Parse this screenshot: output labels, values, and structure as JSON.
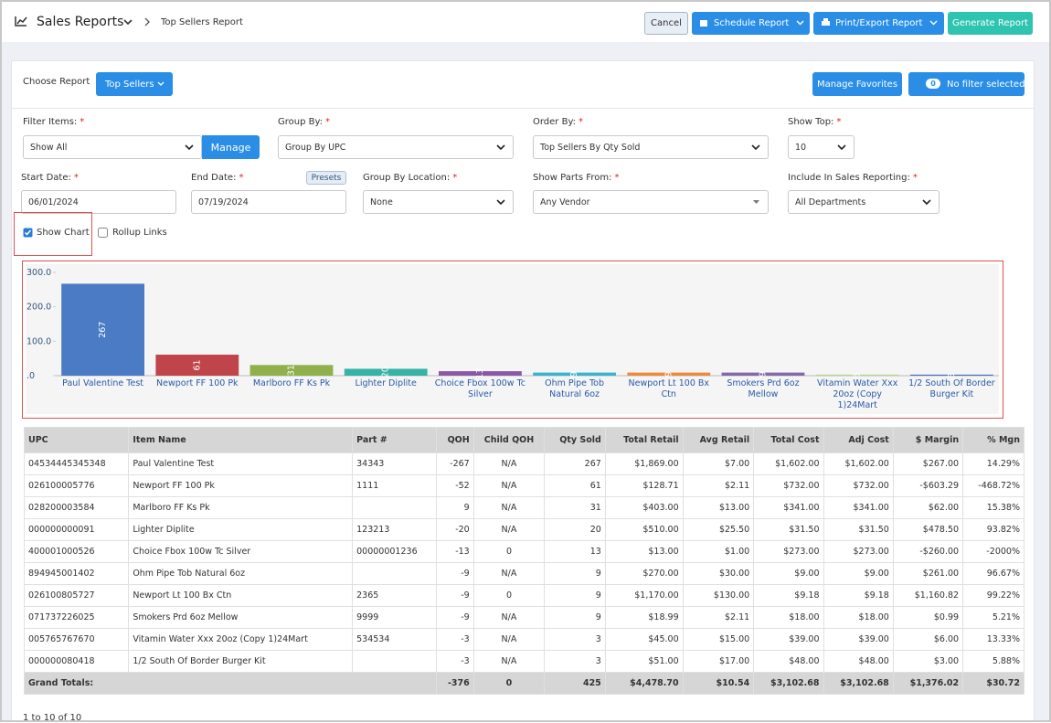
{
  "header": {
    "title": "Sales Reports",
    "breadcrumb": "Top Sellers Report",
    "cancel": "Cancel",
    "schedule": "Schedule Report",
    "print": "Print/Export Report",
    "generate": "Generate Report"
  },
  "toolbar": {
    "choose_label": "Choose Report",
    "report": "Top Sellers",
    "manage_favorites": "Manage Favorites",
    "filter_count": 0,
    "filter_status": "No filter selected"
  },
  "required_mark": "*",
  "filters": {
    "filter_items": {
      "label": "Filter Items:",
      "value": "Show All",
      "button": "Manage"
    },
    "group_by": {
      "label": "Group By:",
      "value": "Group By UPC"
    },
    "order_by": {
      "label": "Order By:",
      "value": "Top Sellers By Qty Sold"
    },
    "show_top": {
      "label": "Show Top:",
      "value": 10
    },
    "start_date": {
      "label": "Start Date:",
      "value": "06/01/2024"
    },
    "end_date": {
      "label": "End Date:",
      "value": "07/19/2024",
      "button": "Presets"
    },
    "group_by_location": {
      "label": "Group By Location:",
      "value": "None"
    },
    "show_parts_from": {
      "label": "Show Parts From:",
      "value": "Any Vendor"
    },
    "include_in_sales": {
      "label": "Include In Sales Reporting:",
      "value": "All Departments"
    }
  },
  "checkboxes": {
    "show_chart": "Show Chart",
    "rollup_links": "Rollup Links"
  },
  "chart_data": {
    "type": "bar",
    "categories": [
      "Paul Valentine Test",
      "Newport FF 100 Pk",
      "Marlboro FF Ks Pk",
      "Lighter Diplite",
      "Choice Fbox 100w Tc Silver",
      "Ohm Pipe Tob Natural 6oz",
      "Newport Lt 100 Bx Ctn",
      "Smokers Prd 6oz Mellow",
      "Vitamin Water Xxx 20oz (Copy 1)24Mart",
      "1/2 South Of Border Burger Kit"
    ],
    "values": [
      267,
      61,
      31,
      20,
      13,
      9,
      9,
      9,
      3,
      3
    ],
    "colors": [
      "#4a7bc4",
      "#c0454a",
      "#8fb04a",
      "#35b3a6",
      "#8a58a6",
      "#3ab3cf",
      "#f08a3a",
      "#8468a8",
      "#b8d48a",
      "#4a70c0"
    ],
    "ylim": [
      0,
      300
    ],
    "yticks": [
      {
        "value": 0,
        "label": ".0"
      },
      {
        "value": 100,
        "label": "100.0"
      },
      {
        "value": 200,
        "label": "200.0"
      },
      {
        "value": 300,
        "label": "300.0"
      }
    ]
  },
  "table": {
    "columns": [
      "UPC",
      "Item Name",
      "Part #",
      "QOH",
      "Child QOH",
      "Qty Sold",
      "Total Retail",
      "Avg Retail",
      "Total Cost",
      "Adj Cost",
      "$ Margin",
      "% Mgn"
    ],
    "rows": [
      [
        "04534445345348",
        "Paul Valentine Test",
        "34343",
        -267,
        "N/A",
        267,
        "$1,869.00",
        "$7.00",
        "$1,602.00",
        "$1,602.00",
        "$267.00",
        "14.29%"
      ],
      [
        "026100005776",
        "Newport FF 100 Pk",
        "1111",
        -52,
        "N/A",
        61,
        "$128.71",
        "$2.11",
        "$732.00",
        "$732.00",
        "-$603.29",
        "-468.72%"
      ],
      [
        "028200003584",
        "Marlboro FF Ks Pk",
        null,
        9,
        "N/A",
        31,
        "$403.00",
        "$13.00",
        "$341.00",
        "$341.00",
        "$62.00",
        "15.38%"
      ],
      [
        "000000000091",
        "Lighter Diplite",
        "123213",
        -20,
        "N/A",
        20,
        "$510.00",
        "$25.50",
        "$31.50",
        "$31.50",
        "$478.50",
        "93.82%"
      ],
      [
        "400001000526",
        "Choice Fbox 100w Tc Silver",
        "00000001236",
        -13,
        0,
        13,
        "$13.00",
        "$1.00",
        "$273.00",
        "$273.00",
        "-$260.00",
        "-2000%"
      ],
      [
        "894945001402",
        "Ohm Pipe Tob Natural 6oz",
        null,
        -9,
        "N/A",
        9,
        "$270.00",
        "$30.00",
        "$9.00",
        "$9.00",
        "$261.00",
        "96.67%"
      ],
      [
        "026100805727",
        "Newport Lt 100 Bx Ctn",
        "2365",
        -9,
        0,
        9,
        "$1,170.00",
        "$130.00",
        "$9.18",
        "$9.18",
        "$1,160.82",
        "99.22%"
      ],
      [
        "071737226025",
        "Smokers Prd 6oz Mellow",
        "9999",
        -9,
        "N/A",
        9,
        "$18.99",
        "$2.11",
        "$18.00",
        "$18.00",
        "$0.99",
        "5.21%"
      ],
      [
        "005765767670",
        "Vitamin Water Xxx 20oz (Copy 1)24Mart",
        "534534",
        -3,
        "N/A",
        3,
        "$45.00",
        "$15.00",
        "$39.00",
        "$39.00",
        "$6.00",
        "13.33%"
      ],
      [
        "000000080418",
        "1/2 South Of Border Burger Kit",
        null,
        -3,
        "N/A",
        3,
        "$51.00",
        "$17.00",
        "$48.00",
        "$48.00",
        "$3.00",
        "5.88%"
      ]
    ],
    "totals": {
      "label": "Grand Totals:",
      "values": [
        -376,
        0,
        425,
        "$4,478.70",
        "$10.54",
        "$3,102.68",
        "$3,102.68",
        "$1,376.02",
        "$30.72"
      ]
    }
  },
  "pagination": "1 to 10 of 10"
}
